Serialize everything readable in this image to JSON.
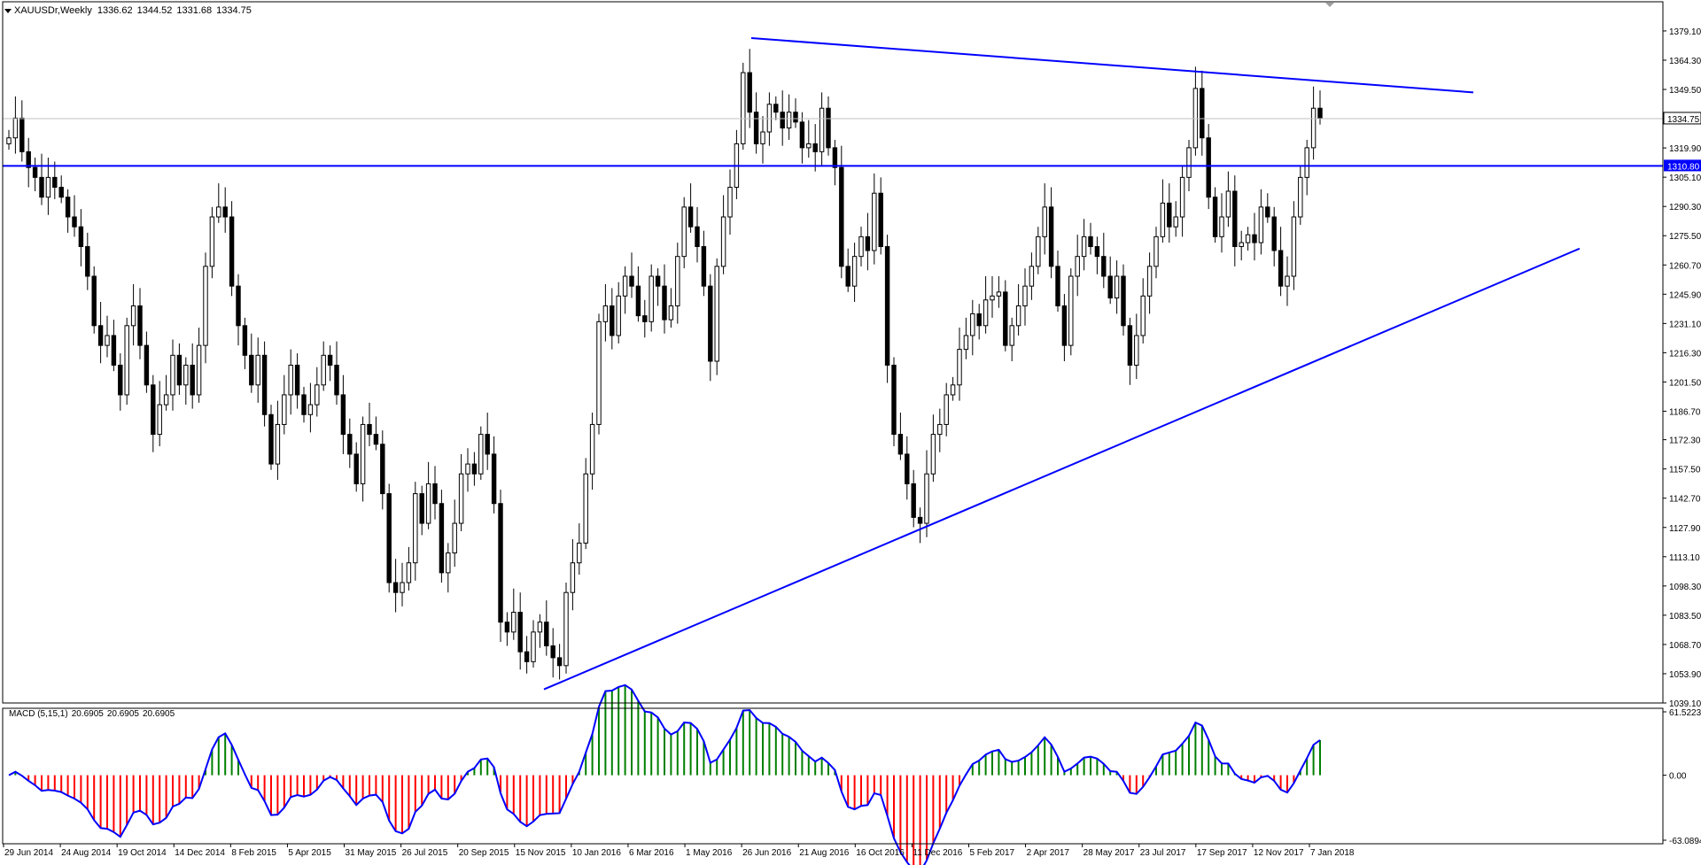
{
  "header": {
    "symbol": "XAUUSDr,Weekly",
    "open": "1336.62",
    "high": "1344.52",
    "low": "1331.68",
    "close": "1334.75"
  },
  "price_axis": {
    "ticks": [
      "1379.10",
      "1364.30",
      "1349.50",
      "1334.75",
      "1319.90",
      "1305.10",
      "1290.30",
      "1275.50",
      "1260.70",
      "1245.90",
      "1231.10",
      "1216.30",
      "1201.50",
      "1186.70",
      "1172.30",
      "1157.50",
      "1142.70",
      "1127.90",
      "1113.10",
      "1098.30",
      "1083.50",
      "1068.70",
      "1053.90",
      "1039.10"
    ],
    "current_price_label": "1334.75",
    "hline_label": "1310.80"
  },
  "macd": {
    "title": "MACD (5,15,1)",
    "values": [
      "20.6905",
      "20.6905",
      "20.6905"
    ],
    "axis_top": "61.5223",
    "axis_zero": "0.00",
    "axis_bottom": "-63.0894"
  },
  "time_axis": {
    "labels": [
      "29 Jun 2014",
      "24 Aug 2014",
      "19 Oct 2014",
      "14 Dec 2014",
      "8 Feb 2015",
      "5 Apr 2015",
      "31 May 2015",
      "26 Jul 2015",
      "20 Sep 2015",
      "15 Nov 2015",
      "10 Jan 2016",
      "6 Mar 2016",
      "1 May 2016",
      "26 Jun 2016",
      "21 Aug 2016",
      "16 Oct 2016",
      "11 Dec 2016",
      "5 Feb 2017",
      "2 Apr 2017",
      "28 May 2017",
      "23 Jul 2017",
      "17 Sep 2017",
      "12 Nov 2017",
      "7 Jan 2018"
    ]
  },
  "colors": {
    "trendline": "#0000ff",
    "macd_line": "#0000ff",
    "hist_up": "#008000",
    "hist_down": "#ff0000",
    "bear_candle": "#000000",
    "bull_candle": "#ffffff",
    "current_price_line": "#c0c0c0"
  },
  "chart_data": {
    "type": "candlestick",
    "symbol": "XAUUSDr",
    "timeframe": "Weekly",
    "y_range": [
      1039.1,
      1384.0
    ],
    "x_first": "29 Jun 2014",
    "x_last": "7 Jan 2018",
    "weekly_closes_approx": [
      1325,
      1335,
      1318,
      1310,
      1305,
      1295,
      1305,
      1300,
      1295,
      1285,
      1280,
      1270,
      1255,
      1230,
      1220,
      1225,
      1210,
      1195,
      1230,
      1240,
      1220,
      1200,
      1175,
      1190,
      1195,
      1215,
      1200,
      1210,
      1195,
      1220,
      1260,
      1285,
      1290,
      1285,
      1250,
      1230,
      1215,
      1200,
      1215,
      1185,
      1160,
      1180,
      1195,
      1210,
      1195,
      1185,
      1190,
      1200,
      1215,
      1210,
      1195,
      1175,
      1165,
      1150,
      1180,
      1175,
      1170,
      1145,
      1100,
      1095,
      1100,
      1110,
      1145,
      1130,
      1150,
      1140,
      1105,
      1115,
      1130,
      1155,
      1160,
      1155,
      1175,
      1165,
      1140,
      1080,
      1075,
      1085,
      1065,
      1060,
      1075,
      1080,
      1068,
      1062,
      1058,
      1095,
      1110,
      1120,
      1155,
      1180,
      1232,
      1240,
      1225,
      1245,
      1255,
      1250,
      1235,
      1232,
      1255,
      1250,
      1233,
      1240,
      1265,
      1290,
      1280,
      1270,
      1250,
      1212,
      1260,
      1285,
      1300,
      1322,
      1358,
      1338,
      1322,
      1328,
      1342,
      1338,
      1330,
      1338,
      1333,
      1320,
      1322,
      1318,
      1340,
      1320,
      1310,
      1260,
      1250,
      1265,
      1275,
      1268,
      1297,
      1270,
      1210,
      1175,
      1165,
      1150,
      1133,
      1130,
      1155,
      1175,
      1180,
      1195,
      1200,
      1218,
      1225,
      1236,
      1230,
      1243,
      1245,
      1247,
      1220,
      1230,
      1240,
      1250,
      1260,
      1275,
      1290,
      1260,
      1240,
      1220,
      1255,
      1265,
      1275,
      1270,
      1265,
      1255,
      1244,
      1255,
      1230,
      1210,
      1225,
      1245,
      1260,
      1275,
      1292,
      1280,
      1285,
      1305,
      1320,
      1350,
      1325,
      1295,
      1275,
      1285,
      1298,
      1270,
      1272,
      1276,
      1272,
      1290,
      1285,
      1268,
      1250,
      1255,
      1285,
      1305,
      1320,
      1340,
      1334.75
    ],
    "trendlines": [
      {
        "from_date": "26 Jun 2016",
        "from_price": 1375.5,
        "to_date": "Mar 2018",
        "to_price": 1348.0
      },
      {
        "from_date": "Dec 2015",
        "from_price": 1046.0,
        "to_date": "Apr 2018",
        "to_price": 1269.0
      },
      {
        "horizontal_price": 1310.8
      }
    ],
    "macd": {
      "fast": 5,
      "slow": 15,
      "signal": 1,
      "range": [
        -63.0894,
        61.5223
      ]
    }
  }
}
